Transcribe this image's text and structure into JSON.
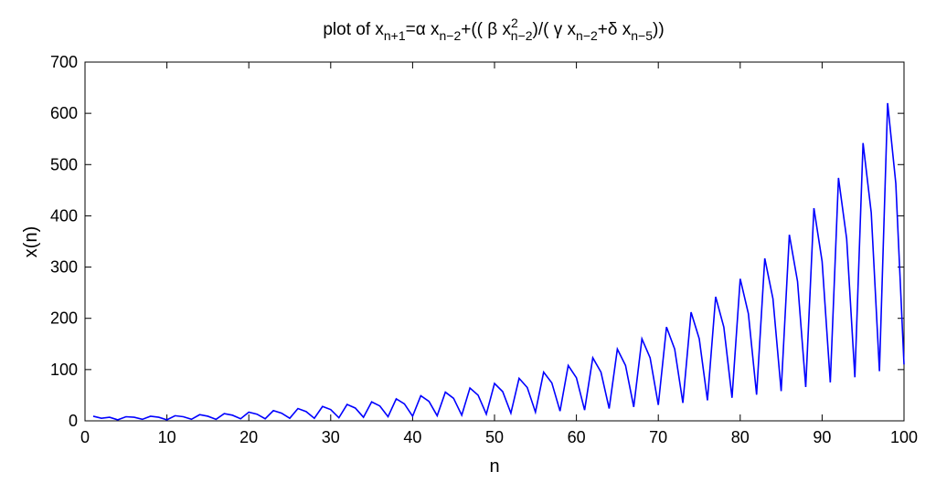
{
  "chart_data": {
    "type": "line",
    "title": {
      "prefix": "plot of x",
      "sub1": "n+1",
      "p2": "=α x",
      "sub2": "n−2",
      "p3": "+(( β x",
      "sup3": "2",
      "sub3": "n−2",
      "p4": ")/( γ x",
      "sub4": "n−2",
      "p5": "+δ x",
      "sub5": "n−5",
      "p6": "))"
    },
    "xlabel": "n",
    "ylabel": "x(n)",
    "xlim": [
      0,
      100
    ],
    "ylim": [
      0,
      700
    ],
    "xticks": [
      0,
      10,
      20,
      30,
      40,
      50,
      60,
      70,
      80,
      90,
      100
    ],
    "yticks": [
      0,
      100,
      200,
      300,
      400,
      500,
      600,
      700
    ],
    "grid": false,
    "line_color": "#0000ff",
    "series": [
      {
        "x": [
          1,
          2,
          3,
          4,
          5,
          6,
          7,
          8,
          9,
          10,
          11,
          12,
          13,
          14,
          15,
          16,
          17,
          18,
          19,
          20,
          21,
          22,
          23,
          24,
          25,
          26,
          27,
          28,
          29,
          30,
          31,
          32,
          33,
          34,
          35,
          36,
          37,
          38,
          39,
          40,
          41,
          42,
          43,
          44,
          45,
          46,
          47,
          48,
          49,
          50,
          51,
          52,
          53,
          54,
          55,
          56,
          57,
          58,
          59,
          60,
          61,
          62,
          63,
          64,
          65,
          66,
          67,
          68,
          69,
          70,
          71,
          72,
          73,
          74,
          75,
          76,
          77,
          78,
          79,
          80,
          81,
          82,
          83,
          84,
          85,
          86,
          87,
          88,
          89,
          90,
          91,
          92,
          93,
          94,
          95,
          96,
          97,
          98,
          99,
          100
        ],
        "y": [
          9,
          5,
          7,
          2,
          8,
          7,
          3,
          9,
          7,
          2,
          10,
          8,
          3,
          12,
          9,
          3,
          14,
          11,
          4,
          17,
          13,
          4,
          20,
          15,
          5,
          24,
          18,
          5,
          28,
          22,
          6,
          32,
          25,
          7,
          37,
          29,
          8,
          43,
          33,
          9,
          49,
          38,
          10,
          56,
          44,
          11,
          64,
          50,
          13,
          73,
          57,
          15,
          83,
          65,
          17,
          95,
          74,
          19,
          108,
          84,
          21,
          123,
          95,
          24,
          140,
          108,
          27,
          160,
          123,
          31,
          183,
          140,
          35,
          212,
          160,
          40,
          242,
          183,
          45,
          277,
          209,
          51,
          317,
          238,
          58,
          363,
          272,
          66,
          415,
          311,
          75,
          474,
          355,
          85,
          542,
          406,
          97,
          620,
          463,
          110
        ]
      }
    ]
  }
}
